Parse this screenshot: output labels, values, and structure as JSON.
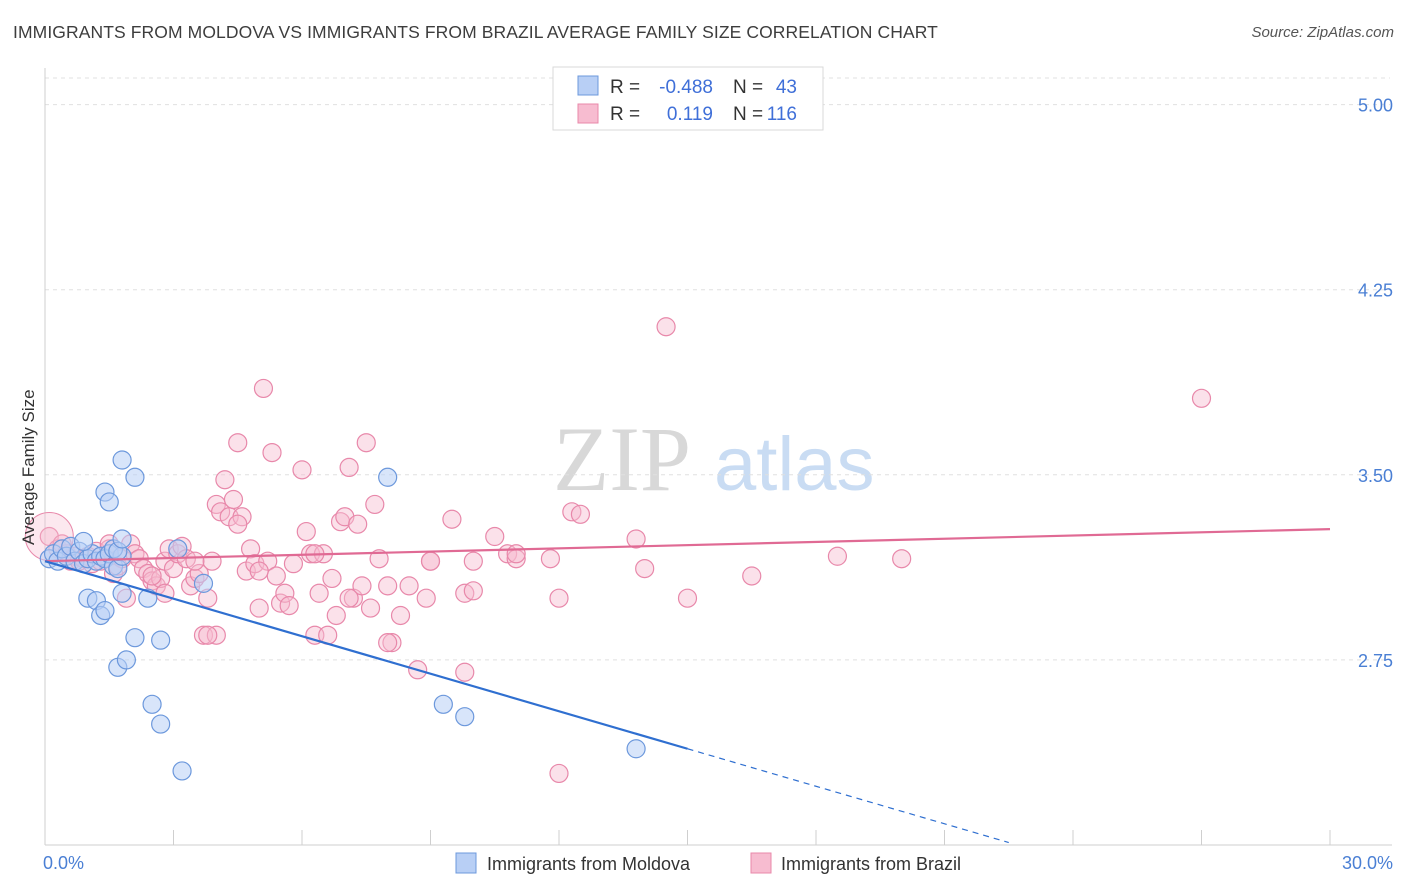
{
  "title": "IMMIGRANTS FROM MOLDOVA VS IMMIGRANTS FROM BRAZIL AVERAGE FAMILY SIZE CORRELATION CHART",
  "source": "Source: ZipAtlas.com",
  "watermark": {
    "zip": "ZIP",
    "atlas": "atlas"
  },
  "colors": {
    "moldova_fill": "#b8cff5",
    "moldova_stroke": "#6c98dc",
    "moldova_line": "#2f6fd0",
    "brazil_fill": "#f7bcd0",
    "brazil_stroke": "#e888aa",
    "brazil_line": "#e06a94",
    "axis_text": "#4a7fd4",
    "grid": "#e0e0e0"
  },
  "legend": {
    "r_label": "R =",
    "n_label": "N =",
    "moldova_r": "-0.488",
    "moldova_n": "43",
    "brazil_r": "0.119",
    "brazil_n": "116"
  },
  "chart_data": {
    "type": "scatter",
    "title": "IMMIGRANTS FROM MOLDOVA VS IMMIGRANTS FROM BRAZIL AVERAGE FAMILY SIZE CORRELATION CHART",
    "xlabel": "",
    "ylabel": "Average Family Size",
    "xlim": [
      0,
      30
    ],
    "ylim": [
      2.0,
      5.12
    ],
    "x_tick_labels": [
      "0.0%",
      "30.0%"
    ],
    "y_ticks": [
      2.75,
      3.5,
      4.25,
      5.0
    ],
    "y_tick_labels": [
      "2.75",
      "3.50",
      "4.25",
      "5.00"
    ],
    "grid": true,
    "legend_placement": "top-center",
    "series": [
      {
        "name": "Immigrants from Moldova",
        "trend": {
          "x0": 0,
          "y0": 3.15,
          "x1": 15,
          "y1": 2.39,
          "dashed_to_x": 22.5
        },
        "points": [
          [
            0.1,
            3.16
          ],
          [
            0.2,
            3.18
          ],
          [
            0.3,
            3.15
          ],
          [
            0.4,
            3.2
          ],
          [
            0.5,
            3.17
          ],
          [
            0.6,
            3.21
          ],
          [
            0.7,
            3.15
          ],
          [
            0.8,
            3.19
          ],
          [
            0.9,
            3.14
          ],
          [
            1.0,
            3.16
          ],
          [
            1.1,
            3.18
          ],
          [
            1.2,
            3.15
          ],
          [
            1.3,
            3.17
          ],
          [
            1.4,
            3.16
          ],
          [
            1.5,
            3.18
          ],
          [
            1.6,
            3.13
          ],
          [
            1.7,
            3.12
          ],
          [
            1.8,
            3.17
          ],
          [
            0.9,
            3.23
          ],
          [
            1.0,
            3.0
          ],
          [
            1.2,
            2.99
          ],
          [
            1.3,
            2.93
          ],
          [
            1.4,
            2.95
          ],
          [
            1.4,
            3.43
          ],
          [
            1.5,
            3.39
          ],
          [
            1.6,
            3.2
          ],
          [
            1.7,
            2.72
          ],
          [
            1.7,
            3.19
          ],
          [
            1.8,
            3.24
          ],
          [
            1.8,
            3.02
          ],
          [
            1.9,
            2.75
          ],
          [
            1.8,
            3.56
          ],
          [
            2.1,
            3.49
          ],
          [
            2.1,
            2.84
          ],
          [
            2.4,
            3.0
          ],
          [
            2.5,
            2.57
          ],
          [
            2.7,
            2.49
          ],
          [
            2.7,
            2.83
          ],
          [
            3.1,
            3.2
          ],
          [
            3.2,
            2.3
          ],
          [
            3.7,
            3.06
          ],
          [
            8.0,
            3.49
          ],
          [
            9.3,
            2.57
          ],
          [
            9.8,
            2.52
          ],
          [
            13.8,
            2.39
          ]
        ]
      },
      {
        "name": "Immigrants from Brazil",
        "trend": {
          "x0": 0,
          "y0": 3.15,
          "x1": 30,
          "y1": 3.28
        },
        "points": [
          [
            0.1,
            3.25
          ],
          [
            0.3,
            3.2
          ],
          [
            0.4,
            3.22
          ],
          [
            0.5,
            3.18
          ],
          [
            0.6,
            3.15
          ],
          [
            0.7,
            3.17
          ],
          [
            0.8,
            3.15
          ],
          [
            0.9,
            3.16
          ],
          [
            1.0,
            3.17
          ],
          [
            1.1,
            3.14
          ],
          [
            1.2,
            3.19
          ],
          [
            1.3,
            3.15
          ],
          [
            1.4,
            3.16
          ],
          [
            1.5,
            3.2
          ],
          [
            1.6,
            3.1
          ],
          [
            1.7,
            3.13
          ],
          [
            1.8,
            3.16
          ],
          [
            1.9,
            3.0
          ],
          [
            2.0,
            3.22
          ],
          [
            2.1,
            3.18
          ],
          [
            2.2,
            3.16
          ],
          [
            2.3,
            3.12
          ],
          [
            2.4,
            3.1
          ],
          [
            2.5,
            3.07
          ],
          [
            2.6,
            3.05
          ],
          [
            2.7,
            3.08
          ],
          [
            2.8,
            3.15
          ],
          [
            2.9,
            3.2
          ],
          [
            3.0,
            3.12
          ],
          [
            3.1,
            3.18
          ],
          [
            3.2,
            3.21
          ],
          [
            3.3,
            3.16
          ],
          [
            3.4,
            3.05
          ],
          [
            3.5,
            3.08
          ],
          [
            3.6,
            3.1
          ],
          [
            3.7,
            2.85
          ],
          [
            3.8,
            3.0
          ],
          [
            3.9,
            3.15
          ],
          [
            4.0,
            3.38
          ],
          [
            4.1,
            3.35
          ],
          [
            4.2,
            3.48
          ],
          [
            4.3,
            3.33
          ],
          [
            4.4,
            3.4
          ],
          [
            4.5,
            3.63
          ],
          [
            4.6,
            3.33
          ],
          [
            4.7,
            3.11
          ],
          [
            4.8,
            3.2
          ],
          [
            4.9,
            3.14
          ],
          [
            5.0,
            2.96
          ],
          [
            5.1,
            3.85
          ],
          [
            5.2,
            3.15
          ],
          [
            5.3,
            3.59
          ],
          [
            5.4,
            3.09
          ],
          [
            5.5,
            2.98
          ],
          [
            5.6,
            3.02
          ],
          [
            5.7,
            2.97
          ],
          [
            5.8,
            3.14
          ],
          [
            6.0,
            3.52
          ],
          [
            6.1,
            3.27
          ],
          [
            6.2,
            3.18
          ],
          [
            6.3,
            2.85
          ],
          [
            6.4,
            3.02
          ],
          [
            6.5,
            3.18
          ],
          [
            6.6,
            2.85
          ],
          [
            6.7,
            3.08
          ],
          [
            6.8,
            2.93
          ],
          [
            6.9,
            3.31
          ],
          [
            7.0,
            3.33
          ],
          [
            7.1,
            3.53
          ],
          [
            7.2,
            3.0
          ],
          [
            7.3,
            3.3
          ],
          [
            7.4,
            3.05
          ],
          [
            7.5,
            3.63
          ],
          [
            7.6,
            2.96
          ],
          [
            7.7,
            3.38
          ],
          [
            7.8,
            3.16
          ],
          [
            8.0,
            3.05
          ],
          [
            8.1,
            2.82
          ],
          [
            8.3,
            2.93
          ],
          [
            8.5,
            3.05
          ],
          [
            8.7,
            2.71
          ],
          [
            8.9,
            3.0
          ],
          [
            9.0,
            3.15
          ],
          [
            9.5,
            3.32
          ],
          [
            9.8,
            3.02
          ],
          [
            10.0,
            3.15
          ],
          [
            10.5,
            3.25
          ],
          [
            10.8,
            3.18
          ],
          [
            11.0,
            3.16
          ],
          [
            11.8,
            3.16
          ],
          [
            12.0,
            3.0
          ],
          [
            12.3,
            3.35
          ],
          [
            12.5,
            3.34
          ],
          [
            13.8,
            3.24
          ],
          [
            14.0,
            3.12
          ],
          [
            15.0,
            3.0
          ],
          [
            16.5,
            3.09
          ],
          [
            18.5,
            3.17
          ],
          [
            20.0,
            3.16
          ],
          [
            14.5,
            4.1
          ],
          [
            27.0,
            3.81
          ],
          [
            12.0,
            2.29
          ],
          [
            9.8,
            2.7
          ],
          [
            4.0,
            2.85
          ],
          [
            3.5,
            3.15
          ],
          [
            8.0,
            2.82
          ],
          [
            10.0,
            3.03
          ],
          [
            6.3,
            3.18
          ],
          [
            2.5,
            3.09
          ],
          [
            1.5,
            3.22
          ],
          [
            3.8,
            2.85
          ],
          [
            7.1,
            3.0
          ],
          [
            5.0,
            3.11
          ],
          [
            4.5,
            3.3
          ],
          [
            9.0,
            3.15
          ],
          [
            11.0,
            3.18
          ],
          [
            2.8,
            3.02
          ]
        ]
      }
    ]
  },
  "bottom_legend": [
    "Immigrants from Moldova",
    "Immigrants from Brazil"
  ]
}
